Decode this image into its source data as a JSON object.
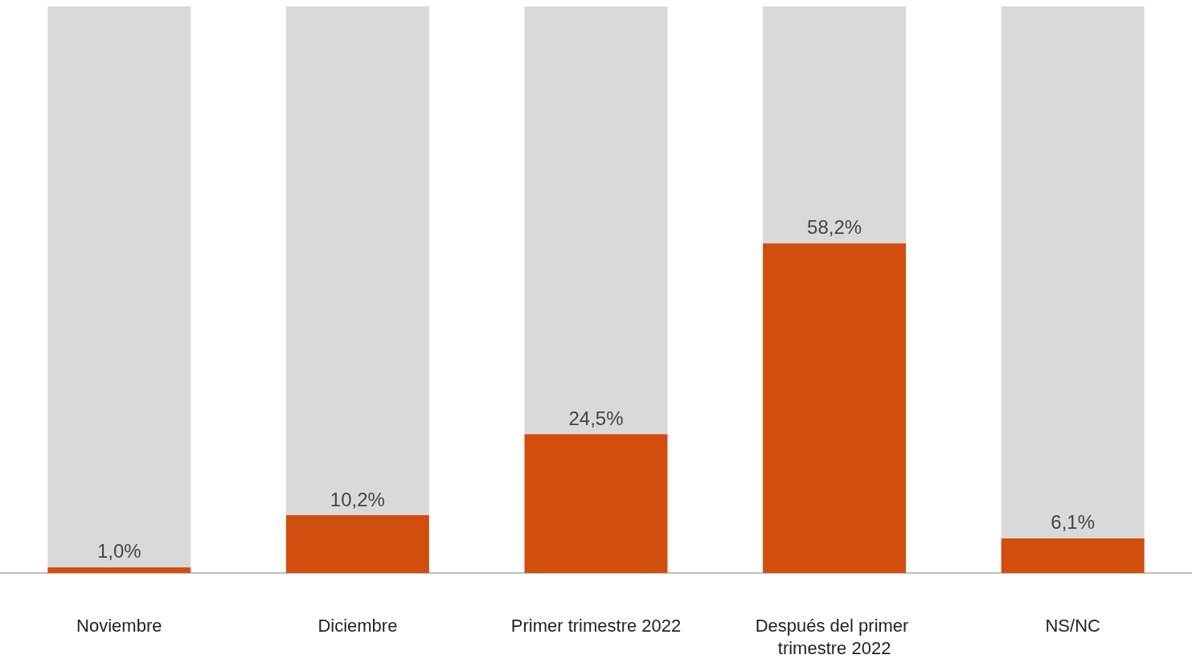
{
  "chart_data": {
    "type": "bar",
    "categories": [
      "Noviembre",
      "Diciembre",
      "Primer trimestre 2022",
      "Después del primer trimestre 2022",
      "NS/NC"
    ],
    "stacked": true,
    "ylim": [
      0,
      100
    ],
    "series": [
      {
        "color": "#d24e0f",
        "values": [
          1.0,
          10.2,
          24.5,
          58.2,
          6.1
        ],
        "value_labels": [
          "1,0%",
          "10,2%",
          "24,5%",
          "58,2%",
          "6,1%"
        ]
      },
      {
        "color": "#d9d9d9",
        "values": [
          99.0,
          89.8,
          75.5,
          41.8,
          93.9
        ]
      }
    ]
  }
}
